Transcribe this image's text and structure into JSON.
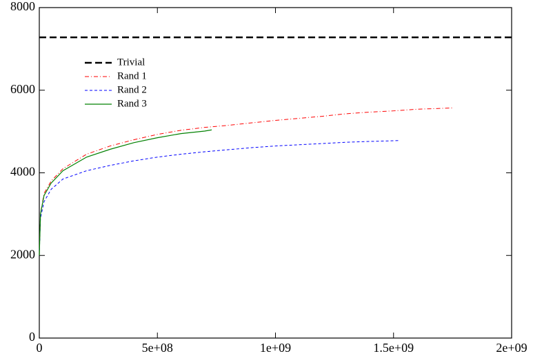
{
  "chart_data": {
    "type": "line",
    "xlim": [
      0,
      2000000000
    ],
    "xticks": [
      0,
      {
        "value": 500000000,
        "label": "5e+08"
      },
      {
        "value": 1000000000,
        "label": "1e+09"
      },
      {
        "value": 1500000000,
        "label": "1.5e+09"
      },
      {
        "value": 2000000000,
        "label": "2e+09"
      }
    ],
    "ylim": [
      0,
      8000
    ],
    "yticks": [
      0,
      2000,
      4000,
      6000,
      8000
    ],
    "legend": "upper left",
    "series": [
      {
        "name": "Trivial",
        "color": "#000000",
        "linestyle": "dashed-bold",
        "x": [
          0,
          2000000000
        ],
        "values": [
          7280,
          7280
        ]
      },
      {
        "name": "Rand 1",
        "color": "#ff0000",
        "linestyle": "dashdot",
        "x": [
          0,
          5000000,
          20000000,
          50000000,
          100000000,
          200000000,
          300000000,
          400000000,
          500000000,
          600000000,
          700000000,
          800000000,
          900000000,
          1000000000,
          1100000000,
          1200000000,
          1300000000,
          1400000000,
          1500000000,
          1600000000,
          1750000000
        ],
        "values": [
          2000,
          3000,
          3500,
          3800,
          4100,
          4450,
          4650,
          4800,
          4930,
          5030,
          5100,
          5150,
          5210,
          5270,
          5320,
          5370,
          5430,
          5470,
          5500,
          5540,
          5570
        ]
      },
      {
        "name": "Rand 2",
        "color": "#0000ff",
        "linestyle": "dashed",
        "x": [
          0,
          5000000,
          20000000,
          50000000,
          100000000,
          200000000,
          300000000,
          400000000,
          500000000,
          600000000,
          700000000,
          800000000,
          900000000,
          1000000000,
          1100000000,
          1200000000,
          1300000000,
          1400000000,
          1520000000
        ],
        "values": [
          2000,
          2900,
          3300,
          3600,
          3850,
          4050,
          4180,
          4290,
          4380,
          4450,
          4510,
          4560,
          4610,
          4650,
          4680,
          4710,
          4740,
          4760,
          4780
        ]
      },
      {
        "name": "Rand 3",
        "color": "#008000",
        "linestyle": "solid",
        "x": [
          0,
          5000000,
          20000000,
          50000000,
          100000000,
          200000000,
          300000000,
          400000000,
          500000000,
          600000000,
          700000000,
          730000000
        ],
        "values": [
          2000,
          3000,
          3450,
          3750,
          4050,
          4380,
          4570,
          4730,
          4850,
          4950,
          5010,
          5040
        ]
      }
    ]
  }
}
